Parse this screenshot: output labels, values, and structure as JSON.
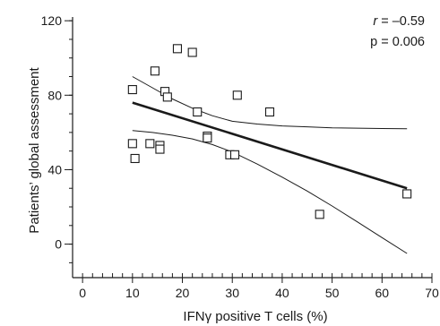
{
  "chart_data": {
    "type": "scatter",
    "xlabel": "IFNγ positive T cells (%)",
    "ylabel": "Patients’ global assessment",
    "xlim": [
      -2,
      70
    ],
    "ylim": [
      -18,
      122
    ],
    "xticks": [
      0,
      10,
      20,
      30,
      40,
      50,
      60,
      70
    ],
    "yticks": [
      0,
      40,
      80,
      120
    ],
    "x_minor_step": 2,
    "y_minor_step": 10,
    "grid": false,
    "annotation": {
      "r_label": "r",
      "r_value": " = –0.59",
      "p_text": "p = 0.006"
    },
    "points": [
      {
        "x": 10,
        "y": 83
      },
      {
        "x": 10,
        "y": 54
      },
      {
        "x": 10.5,
        "y": 46
      },
      {
        "x": 13.5,
        "y": 54
      },
      {
        "x": 14.5,
        "y": 93
      },
      {
        "x": 15.5,
        "y": 53
      },
      {
        "x": 15.5,
        "y": 51
      },
      {
        "x": 16.5,
        "y": 82
      },
      {
        "x": 17,
        "y": 79
      },
      {
        "x": 19,
        "y": 105
      },
      {
        "x": 22,
        "y": 103
      },
      {
        "x": 23,
        "y": 71
      },
      {
        "x": 25,
        "y": 58
      },
      {
        "x": 25,
        "y": 57
      },
      {
        "x": 29.5,
        "y": 48
      },
      {
        "x": 30.5,
        "y": 48
      },
      {
        "x": 31,
        "y": 80
      },
      {
        "x": 37.5,
        "y": 71
      },
      {
        "x": 47.5,
        "y": 16
      },
      {
        "x": 65,
        "y": 27
      }
    ],
    "regression_line": {
      "x": [
        10,
        65
      ],
      "y": [
        76,
        30
      ]
    },
    "confidence_band": {
      "upper": {
        "x": [
          10,
          14,
          18,
          22,
          26,
          30,
          35,
          40,
          45,
          50,
          55,
          60,
          65
        ],
        "y": [
          90,
          84,
          78,
          73,
          69,
          66,
          64.5,
          63.5,
          63,
          62.5,
          62.3,
          62.1,
          62
        ]
      },
      "lower": {
        "x": [
          10,
          14,
          18,
          22,
          26,
          30,
          35,
          40,
          45,
          50,
          55,
          60,
          65
        ],
        "y": [
          61,
          60,
          58.5,
          56.5,
          53.5,
          49.5,
          43,
          36,
          28.5,
          20.5,
          12,
          3.5,
          -5
        ]
      }
    }
  }
}
